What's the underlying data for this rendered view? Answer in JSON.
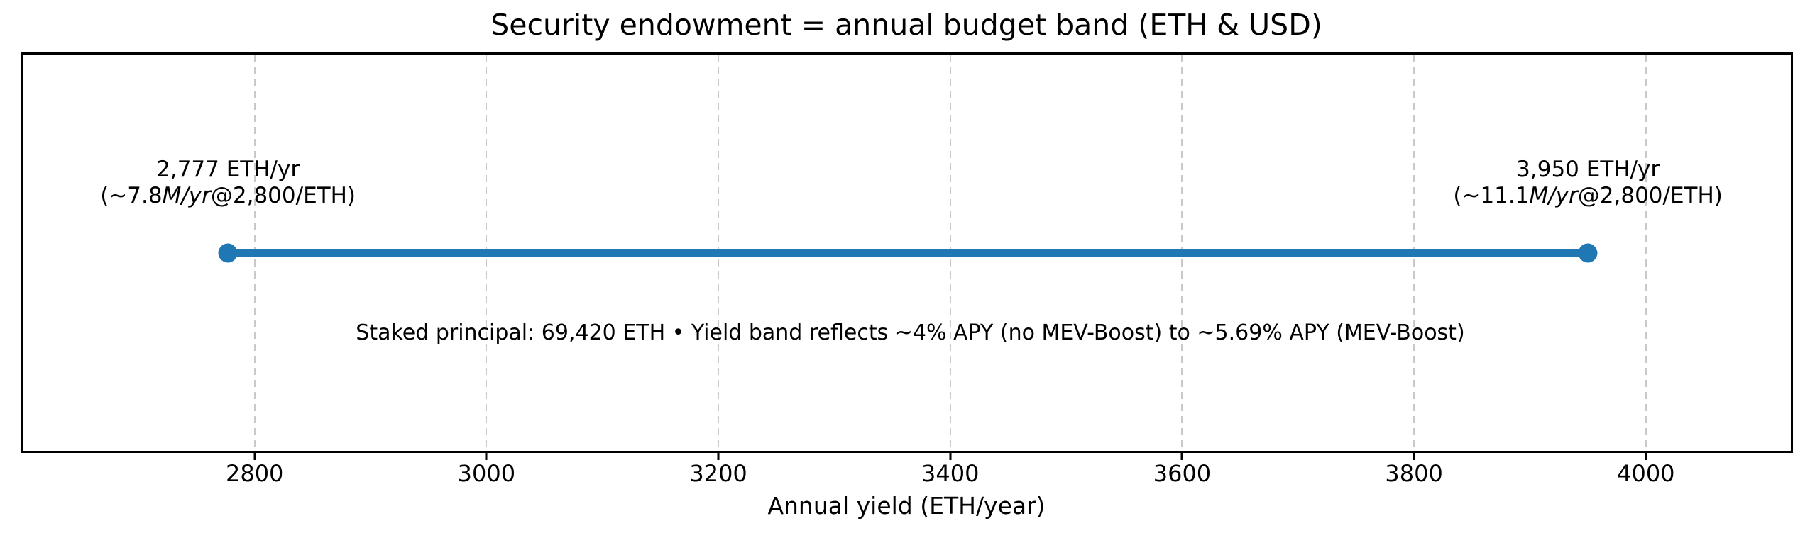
{
  "colors": {
    "band_line": "#1f77b4",
    "grid": "#c9c9c9",
    "spine": "#000000",
    "text": "#000000",
    "background": "#ffffff"
  },
  "chart_data": {
    "type": "line",
    "title": "Security endowment = annual budget band (ETH & USD)",
    "xlabel": "Annual yield (ETH/year)",
    "xlim": [
      2600,
      4125
    ],
    "xticks": [
      2800,
      3000,
      3200,
      3400,
      3600,
      3800,
      4000
    ],
    "grid": "vertical dashed gridlines at each x tick",
    "legend": "none",
    "series": [
      {
        "name": "annual budget band",
        "x": [
          2777,
          3950
        ],
        "style": "thick horizontal segment with round markers at both ends"
      }
    ],
    "band": {
      "start_eth_per_year": 2777,
      "end_eth_per_year": 3950
    },
    "point_labels": [
      {
        "x": 2777,
        "line1": "2,777 ETH/yr",
        "line2_prefix": "(~",
        "line2_value": "7.8",
        "line2_unit_italic": "M/yr",
        "line2_suffix": "@2,800/ETH)"
      },
      {
        "x": 3950,
        "line1": "3,950 ETH/yr",
        "line2_prefix": "(~",
        "line2_value": "11.1",
        "line2_unit_italic": "M/yr",
        "line2_suffix": "@2,800/ETH)"
      }
    ],
    "annotation": "Staked principal: 69,420 ETH • Yield band reflects ~4% APY (no MEV-Boost) to ~5.69% APY (MEV-Boost)"
  }
}
